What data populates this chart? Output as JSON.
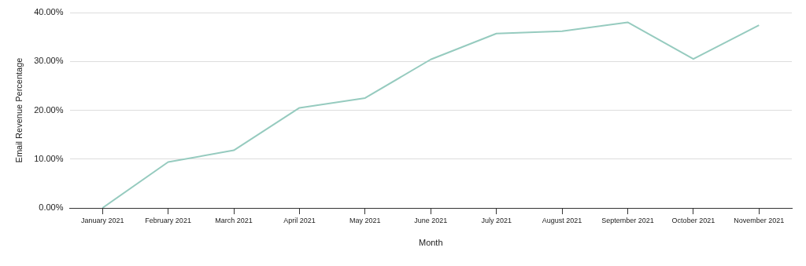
{
  "chart_data": {
    "type": "line",
    "xlabel": "Month",
    "ylabel": "Email Revenue Percentage",
    "categories": [
      "January 2021",
      "February 2021",
      "March 2021",
      "April 2021",
      "May 2021",
      "June 2021",
      "July 2021",
      "August 2021",
      "September 2021",
      "October 2021",
      "November 2021"
    ],
    "series": [
      {
        "color": "#96cbbf",
        "values": [
          0,
          9.4,
          11.8,
          20.5,
          22.5,
          30.4,
          35.7,
          36.2,
          38.0,
          30.5,
          37.4
        ]
      }
    ],
    "ylim": [
      0,
      40
    ],
    "yticks": [
      {
        "value": 0,
        "label": "0.00%"
      },
      {
        "value": 10,
        "label": "10.00%"
      },
      {
        "value": 20,
        "label": "20.00%"
      },
      {
        "value": 30,
        "label": "30.00%"
      },
      {
        "value": 40,
        "label": "40.00%"
      }
    ],
    "grid": "y",
    "legend": false,
    "marker": "none",
    "line_style": "solid"
  }
}
